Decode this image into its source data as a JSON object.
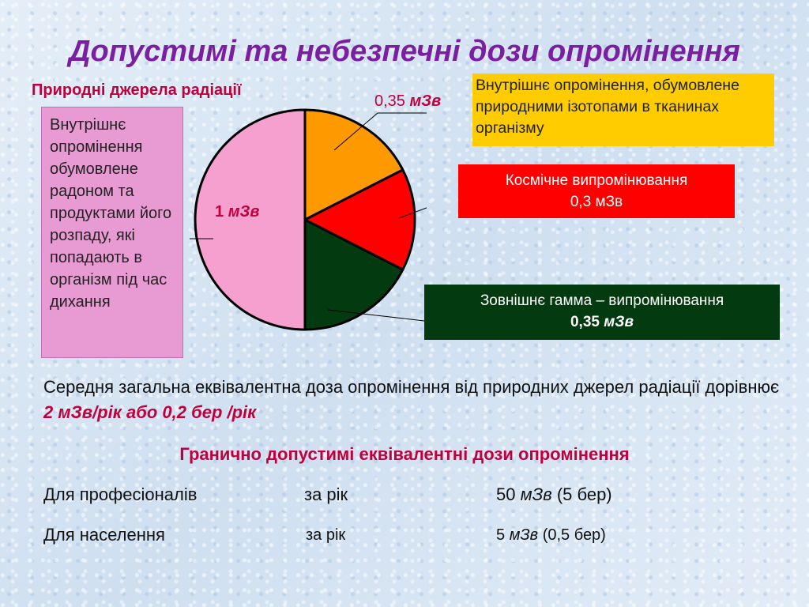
{
  "title": "Допустимі та небезпечні дози опромінення",
  "subtitle": "Природні джерела радіації",
  "colors": {
    "radon": "#f6a0cf",
    "internal": "#ff9900",
    "cosmic": "#ff0000",
    "gamma": "#033a0f"
  },
  "chart_data": {
    "type": "pie",
    "unit": "мЗв",
    "slices": [
      {
        "label": "Внутрішнє опромінення, обумовлене радоном та продуктами його розпаду, які попадають в організм під час дихання",
        "value": 1,
        "color": "#f6a0cf"
      },
      {
        "label": "Внутрішнє опромінення, обумовлене природними ізотопами в тканинах організму",
        "value": 0.35,
        "color": "#ff9900"
      },
      {
        "label": "Космічне випромінювання",
        "value": 0.3,
        "color": "#ff0000"
      },
      {
        "label": "Зовнішнє гамма – випромінювання",
        "value": 0.35,
        "color": "#033a0f"
      }
    ]
  },
  "labels": {
    "radon_box": "Внутрішнє опромінення обумовлене радоном та продуктами його розпаду, які попадають в організм під час дихання",
    "radon_value_num": "1",
    "radon_value_unit": "мЗв",
    "internal_box": "Внутрішнє опромінення, обумовлене природними ізотопами в тканинах організму",
    "internal_value_num": "0,35",
    "internal_value_unit": "мЗв",
    "cosmic_box_line1": "Космічне випромінювання",
    "cosmic_box_line2": "0,3 мЗв",
    "gamma_box_line1": "Зовнішнє гамма – випромінювання",
    "gamma_box_num": "0,35",
    "gamma_box_unit": "мЗв"
  },
  "summary": {
    "text": "Середня загальна еквівалентна доза опромінення від природних джерел радіації дорівнює",
    "highlight_num": "2",
    "highlight_rest": "мЗв/рік або 0,2 бер /рік"
  },
  "limits": {
    "title": "Гранично допустимі еквівалентні дози опромінення",
    "rows": [
      {
        "who": "Для професіоналів",
        "period": "за рік",
        "num": "50",
        "unit": "мЗв",
        "extra": "(5 бер)"
      },
      {
        "who": "Для населення",
        "period": "за рік",
        "num": "5",
        "unit": "мЗв",
        "extra": "(0,5 бер)"
      }
    ]
  }
}
